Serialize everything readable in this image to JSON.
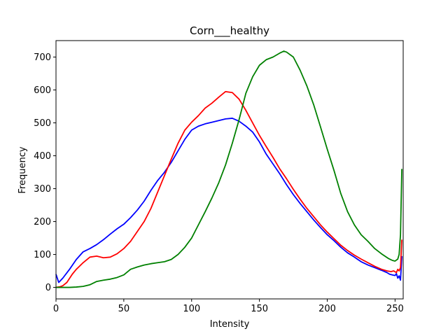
{
  "chart_data": {
    "type": "line",
    "title": "Corn___healthy",
    "xlabel": "Intensity",
    "ylabel": "Frequency",
    "xlim": [
      0,
      256
    ],
    "ylim": [
      -35,
      750
    ],
    "xticks": [
      0,
      50,
      100,
      150,
      200,
      250
    ],
    "yticks": [
      0,
      100,
      200,
      300,
      400,
      500,
      600,
      700
    ],
    "grid": false,
    "series": [
      {
        "color": "#0000ff",
        "x": [
          0,
          2,
          5,
          10,
          15,
          20,
          25,
          30,
          35,
          40,
          45,
          50,
          55,
          60,
          65,
          70,
          75,
          80,
          85,
          90,
          95,
          100,
          105,
          110,
          115,
          120,
          125,
          130,
          135,
          140,
          145,
          150,
          155,
          160,
          165,
          170,
          175,
          180,
          185,
          190,
          195,
          200,
          205,
          210,
          215,
          220,
          225,
          230,
          235,
          240,
          244,
          246,
          248,
          250,
          251,
          252,
          253,
          254,
          255
        ],
        "y": [
          40,
          15,
          28,
          55,
          85,
          108,
          118,
          130,
          145,
          162,
          178,
          192,
          212,
          235,
          262,
          295,
          325,
          350,
          380,
          415,
          450,
          478,
          490,
          497,
          502,
          507,
          512,
          514,
          505,
          490,
          472,
          442,
          405,
          375,
          345,
          312,
          282,
          255,
          230,
          205,
          182,
          160,
          142,
          122,
          105,
          92,
          78,
          68,
          60,
          52,
          45,
          40,
          38,
          36,
          42,
          28,
          35,
          22,
          95
        ]
      },
      {
        "color": "#ff0000",
        "x": [
          0,
          3,
          5,
          8,
          12,
          15,
          20,
          25,
          30,
          35,
          40,
          45,
          50,
          55,
          60,
          65,
          70,
          75,
          80,
          85,
          90,
          95,
          100,
          105,
          110,
          115,
          120,
          125,
          130,
          135,
          140,
          145,
          150,
          155,
          160,
          165,
          170,
          175,
          180,
          185,
          190,
          195,
          200,
          205,
          210,
          215,
          220,
          225,
          230,
          235,
          240,
          244,
          247,
          249,
          251,
          252,
          253,
          254,
          255
        ],
        "y": [
          0,
          2,
          5,
          15,
          40,
          55,
          75,
          92,
          95,
          90,
          92,
          102,
          118,
          140,
          170,
          200,
          240,
          290,
          340,
          390,
          438,
          478,
          502,
          522,
          545,
          560,
          578,
          595,
          592,
          572,
          538,
          500,
          462,
          428,
          395,
          360,
          330,
          298,
          268,
          240,
          215,
          190,
          168,
          148,
          128,
          112,
          98,
          86,
          75,
          64,
          55,
          50,
          48,
          50,
          45,
          55,
          50,
          60,
          145
        ]
      },
      {
        "color": "#008000",
        "x": [
          0,
          5,
          10,
          15,
          20,
          25,
          30,
          35,
          40,
          45,
          50,
          55,
          60,
          65,
          70,
          75,
          80,
          85,
          90,
          95,
          100,
          105,
          110,
          115,
          120,
          125,
          130,
          135,
          140,
          145,
          150,
          155,
          160,
          165,
          168,
          170,
          175,
          180,
          185,
          190,
          195,
          200,
          205,
          210,
          215,
          220,
          225,
          230,
          235,
          240,
          245,
          248,
          250,
          252,
          253,
          254,
          255
        ],
        "y": [
          0,
          0,
          0,
          1,
          3,
          8,
          18,
          22,
          25,
          30,
          38,
          55,
          62,
          68,
          72,
          75,
          78,
          85,
          100,
          122,
          150,
          190,
          230,
          272,
          318,
          372,
          438,
          510,
          590,
          640,
          675,
          692,
          700,
          712,
          718,
          715,
          700,
          660,
          612,
          555,
          488,
          420,
          355,
          285,
          230,
          190,
          160,
          140,
          118,
          102,
          88,
          82,
          80,
          86,
          100,
          160,
          360
        ]
      }
    ]
  }
}
